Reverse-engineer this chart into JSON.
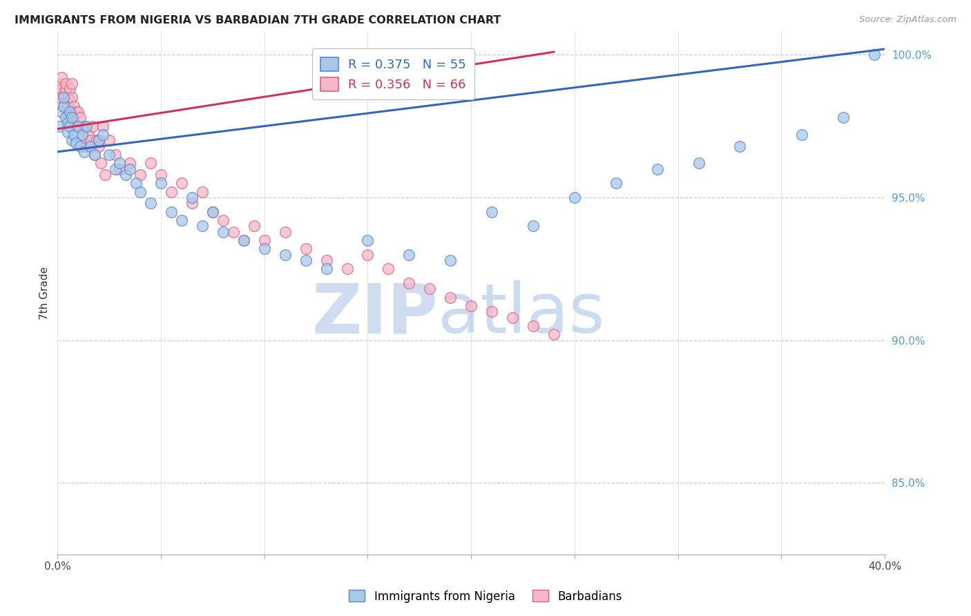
{
  "title": "IMMIGRANTS FROM NIGERIA VS BARBADIAN 7TH GRADE CORRELATION CHART",
  "source": "Source: ZipAtlas.com",
  "ylabel": "7th Grade",
  "ylabel_right_ticks": [
    "100.0%",
    "95.0%",
    "90.0%",
    "85.0%"
  ],
  "ylabel_right_vals": [
    1.0,
    0.95,
    0.9,
    0.85
  ],
  "xlim": [
    0.0,
    0.4
  ],
  "ylim": [
    0.825,
    1.008
  ],
  "legend_blue_R": "0.375",
  "legend_blue_N": "55",
  "legend_pink_R": "0.356",
  "legend_pink_N": "66",
  "blue_fill": "#aac8e8",
  "pink_fill": "#f4b8c8",
  "blue_edge": "#5588cc",
  "pink_edge": "#e06080",
  "blue_line": "#3366bb",
  "pink_line": "#cc3355",
  "nigeria_x": [
    0.001,
    0.002,
    0.003,
    0.003,
    0.004,
    0.005,
    0.005,
    0.006,
    0.006,
    0.007,
    0.007,
    0.008,
    0.009,
    0.01,
    0.011,
    0.012,
    0.013,
    0.014,
    0.016,
    0.018,
    0.02,
    0.022,
    0.025,
    0.028,
    0.03,
    0.033,
    0.035,
    0.038,
    0.04,
    0.045,
    0.05,
    0.055,
    0.06,
    0.065,
    0.07,
    0.075,
    0.08,
    0.09,
    0.1,
    0.11,
    0.12,
    0.13,
    0.15,
    0.17,
    0.19,
    0.21,
    0.23,
    0.25,
    0.27,
    0.29,
    0.31,
    0.33,
    0.36,
    0.38,
    0.395
  ],
  "nigeria_y": [
    0.975,
    0.98,
    0.982,
    0.985,
    0.978,
    0.976,
    0.973,
    0.98,
    0.975,
    0.97,
    0.978,
    0.972,
    0.969,
    0.975,
    0.968,
    0.972,
    0.966,
    0.975,
    0.968,
    0.965,
    0.97,
    0.972,
    0.965,
    0.96,
    0.962,
    0.958,
    0.96,
    0.955,
    0.952,
    0.948,
    0.955,
    0.945,
    0.942,
    0.95,
    0.94,
    0.945,
    0.938,
    0.935,
    0.932,
    0.93,
    0.928,
    0.925,
    0.935,
    0.93,
    0.928,
    0.945,
    0.94,
    0.95,
    0.955,
    0.96,
    0.962,
    0.968,
    0.972,
    0.978,
    1.0
  ],
  "barbadian_x": [
    0.001,
    0.001,
    0.002,
    0.002,
    0.003,
    0.003,
    0.004,
    0.004,
    0.005,
    0.005,
    0.005,
    0.006,
    0.006,
    0.007,
    0.007,
    0.007,
    0.008,
    0.008,
    0.009,
    0.009,
    0.01,
    0.01,
    0.011,
    0.012,
    0.013,
    0.014,
    0.015,
    0.016,
    0.017,
    0.018,
    0.019,
    0.02,
    0.021,
    0.022,
    0.023,
    0.025,
    0.028,
    0.03,
    0.035,
    0.04,
    0.045,
    0.05,
    0.055,
    0.06,
    0.065,
    0.07,
    0.075,
    0.08,
    0.085,
    0.09,
    0.095,
    0.1,
    0.11,
    0.12,
    0.13,
    0.14,
    0.15,
    0.16,
    0.17,
    0.18,
    0.19,
    0.2,
    0.21,
    0.22,
    0.23,
    0.24
  ],
  "barbadian_y": [
    0.985,
    0.99,
    0.988,
    0.992,
    0.986,
    0.982,
    0.988,
    0.99,
    0.985,
    0.982,
    0.978,
    0.988,
    0.984,
    0.978,
    0.985,
    0.99,
    0.982,
    0.978,
    0.975,
    0.98,
    0.98,
    0.975,
    0.978,
    0.972,
    0.975,
    0.968,
    0.972,
    0.97,
    0.975,
    0.965,
    0.97,
    0.968,
    0.962,
    0.975,
    0.958,
    0.97,
    0.965,
    0.96,
    0.962,
    0.958,
    0.962,
    0.958,
    0.952,
    0.955,
    0.948,
    0.952,
    0.945,
    0.942,
    0.938,
    0.935,
    0.94,
    0.935,
    0.938,
    0.932,
    0.928,
    0.925,
    0.93,
    0.925,
    0.92,
    0.918,
    0.915,
    0.912,
    0.91,
    0.908,
    0.905,
    0.902
  ],
  "blue_trendline_x": [
    0.0,
    0.4
  ],
  "blue_trendline_y": [
    0.966,
    1.002
  ],
  "pink_trendline_x": [
    0.0,
    0.24
  ],
  "pink_trendline_y": [
    0.974,
    1.001
  ]
}
